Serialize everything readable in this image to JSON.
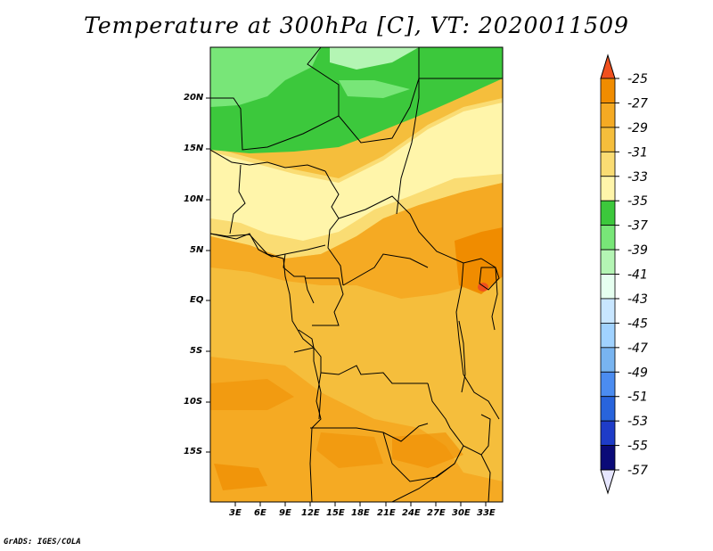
{
  "title": "Temperature at 300hPa [C], VT: 2020011509",
  "credit": "GrADS: IGES/COLA",
  "map": {
    "lat_labels": [
      "20N",
      "15N",
      "10N",
      "5N",
      "EQ",
      "5S",
      "10S",
      "15S"
    ],
    "lon_labels": [
      "3E",
      "6E",
      "9E",
      "12E",
      "15E",
      "18E",
      "21E",
      "24E",
      "27E",
      "30E",
      "33E"
    ]
  },
  "colorbar": {
    "labels": [
      "-25",
      "-27",
      "-29",
      "-31",
      "-33",
      "-35",
      "-37",
      "-39",
      "-41",
      "-43",
      "-45",
      "-47",
      "-49",
      "-51",
      "-53",
      "-55",
      "-57"
    ],
    "colors": [
      "#f0501e",
      "#f08c00",
      "#f5aa23",
      "#f5be3c",
      "#fadc73",
      "#fff5aa",
      "#3cc83c",
      "#78e678",
      "#b4f5b4",
      "#e6fff0",
      "#c8e6ff",
      "#a0d2ff",
      "#78b4f0",
      "#4b8cf0",
      "#2864dc",
      "#1e3cc8",
      "#0a0a78"
    ],
    "top_color": "#f0501e",
    "bottom_color": "#e6e6ff"
  }
}
